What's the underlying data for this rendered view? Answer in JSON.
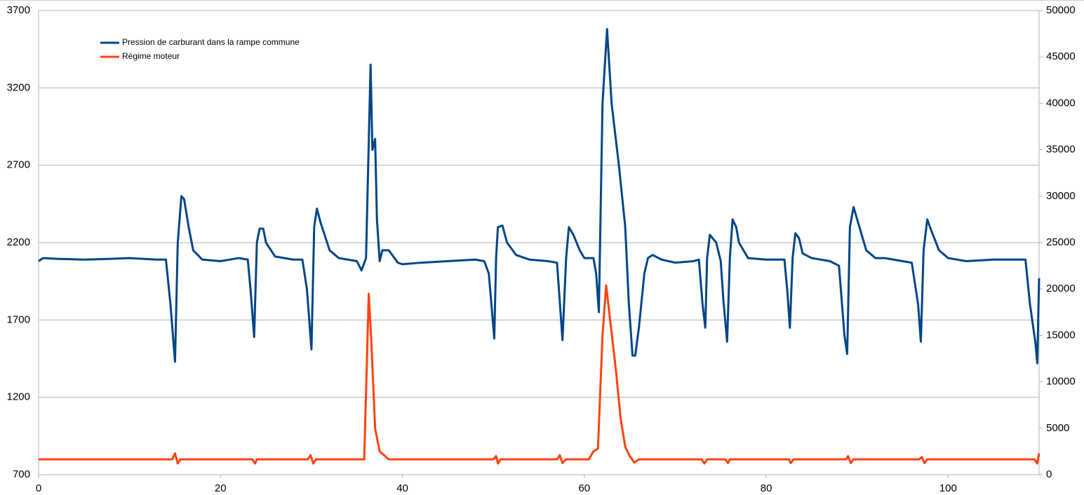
{
  "chart_data": {
    "type": "line",
    "xlim": [
      0,
      110
    ],
    "xticks": [
      0,
      20,
      40,
      60,
      80,
      100
    ],
    "ylim": [
      700,
      3700
    ],
    "yticks": [
      700,
      1200,
      1700,
      2200,
      2700,
      3200,
      3700
    ],
    "y2lim": [
      0,
      50000
    ],
    "y2ticks": [
      0,
      5000,
      10000,
      15000,
      20000,
      25000,
      30000,
      35000,
      40000,
      45000,
      50000
    ],
    "grid": true,
    "legend": "top-left",
    "series": [
      {
        "name": "Pression de carburant dans la rampe commune",
        "color": "#004586",
        "axis": "y",
        "x": [
          0,
          0.5,
          2,
          5,
          8,
          10,
          13,
          14,
          14.5,
          15,
          15.3,
          15.7,
          16,
          16.5,
          17,
          18,
          20,
          22,
          23,
          23.3,
          23.7,
          24,
          24.3,
          24.7,
          25,
          26,
          28,
          29,
          29.5,
          30,
          30.3,
          30.6,
          31,
          32,
          33,
          34,
          35,
          35.5,
          36,
          36.2,
          36.5,
          36.7,
          37,
          37.2,
          37.5,
          37.8,
          38.5,
          39.5,
          40,
          42,
          45,
          48,
          49,
          49.5,
          50.1,
          50.3,
          50.5,
          51,
          51.5,
          52.5,
          54,
          56,
          57,
          57.6,
          58,
          58.3,
          58.8,
          59.5,
          60,
          61,
          61.3,
          61.6,
          62,
          62.5,
          63,
          63.8,
          64.5,
          64.9,
          65.3,
          65.6,
          66,
          66.6,
          67,
          67.5,
          68.5,
          70,
          72,
          72.6,
          73,
          73.3,
          73.5,
          73.8,
          74.5,
          75,
          75.3,
          75.7,
          76,
          76.3,
          76.7,
          77,
          78,
          80,
          81,
          82,
          82.3,
          82.6,
          82.9,
          83.2,
          83.6,
          84,
          85,
          87,
          88,
          88.6,
          88.9,
          89.2,
          89.6,
          90,
          91,
          92,
          93,
          94,
          95,
          96,
          96.7,
          97,
          97.3,
          97.7,
          98,
          99,
          100,
          102,
          105,
          107,
          108.5,
          109,
          109.6,
          109.8,
          110
        ],
        "values": [
          2080,
          2100,
          2095,
          2090,
          2095,
          2100,
          2090,
          2090,
          1800,
          1430,
          2200,
          2500,
          2480,
          2300,
          2150,
          2090,
          2080,
          2100,
          2090,
          1900,
          1590,
          2200,
          2290,
          2290,
          2200,
          2110,
          2090,
          2090,
          1900,
          1510,
          2300,
          2420,
          2330,
          2150,
          2100,
          2090,
          2080,
          2020,
          2100,
          2600,
          3350,
          2800,
          2870,
          2350,
          2080,
          2150,
          2150,
          2070,
          2060,
          2070,
          2080,
          2090,
          2080,
          2000,
          1580,
          2100,
          2300,
          2310,
          2200,
          2120,
          2090,
          2080,
          2070,
          1570,
          2100,
          2300,
          2250,
          2150,
          2100,
          2100,
          2000,
          1750,
          3100,
          3580,
          3100,
          2700,
          2300,
          1800,
          1470,
          1470,
          1650,
          2000,
          2100,
          2120,
          2090,
          2070,
          2080,
          2090,
          1800,
          1650,
          2100,
          2250,
          2200,
          2080,
          1820,
          1560,
          2100,
          2350,
          2300,
          2200,
          2100,
          2090,
          2090,
          2090,
          1900,
          1650,
          2100,
          2260,
          2230,
          2130,
          2100,
          2080,
          2050,
          1600,
          1480,
          2300,
          2430,
          2350,
          2150,
          2100,
          2100,
          2090,
          2080,
          2070,
          1800,
          1560,
          2150,
          2350,
          2300,
          2150,
          2100,
          2080,
          2090,
          2090,
          2090,
          1800,
          1550,
          1420,
          1970
        ]
      },
      {
        "name": "Régime moteur",
        "color": "#ff420e",
        "axis": "y2",
        "x": [
          0,
          14.7,
          15,
          15.3,
          15.6,
          23.5,
          23.8,
          24,
          29.6,
          29.9,
          30.2,
          30.5,
          35.8,
          36.3,
          36.6,
          37,
          37.5,
          38.5,
          50,
          50.3,
          50.5,
          50.8,
          57,
          57.3,
          57.6,
          58,
          60.5,
          61,
          61.5,
          62,
          62.4,
          62.8,
          63.5,
          64,
          64.5,
          65,
          65.5,
          66,
          72.9,
          73.2,
          73.5,
          75.5,
          75.8,
          76,
          82.5,
          82.7,
          83,
          88.8,
          89,
          89.3,
          89.6,
          96.8,
          97.1,
          97.4,
          97.7,
          109.5,
          109.8,
          110
        ],
        "values": [
          1650,
          1650,
          2300,
          1200,
          1650,
          1650,
          1200,
          1650,
          1650,
          2100,
          1200,
          1650,
          1650,
          19500,
          14000,
          5000,
          2500,
          1650,
          1650,
          2000,
          1200,
          1650,
          1650,
          2100,
          1250,
          1650,
          1650,
          2500,
          2800,
          15000,
          20400,
          17000,
          11000,
          6000,
          3000,
          2000,
          1300,
          1650,
          1650,
          1200,
          1650,
          1650,
          1250,
          1650,
          1650,
          1250,
          1650,
          1650,
          2000,
          1250,
          1650,
          1650,
          1900,
          1250,
          1650,
          1650,
          1200,
          2300
        ]
      }
    ]
  }
}
